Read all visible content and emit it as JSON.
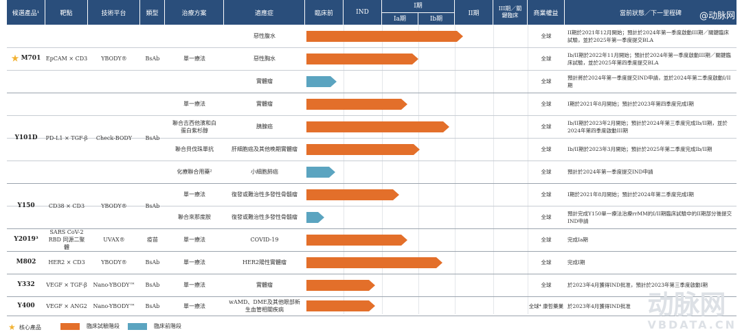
{
  "headers": {
    "candidate": "候選產品¹",
    "target": "靶點",
    "platform": "技術平台",
    "type": "類型",
    "regimen": "治療方案",
    "indication": "適應症",
    "preclinical": "臨床前",
    "ind": "IND",
    "phase1": "I期",
    "phase1a": "Ia期",
    "phase1b": "Ib期",
    "phase2": "II期",
    "phase3": "III期／關鍵臨床",
    "rights": "商業權益",
    "status": "當前狀態／下一里程碑"
  },
  "watermark_top": "@动脉网",
  "watermark_bottom": "动脉网",
  "watermark_url": "VBDATA.CN",
  "products": [
    {
      "name": "M701",
      "star": true,
      "target": "EpCAM × CD3",
      "platform": "YBODY®",
      "type": "BsAb"
    },
    {
      "name": "Y101D",
      "star": false,
      "target": "PD-L1 × TGF-β",
      "platform": "Check-BODY",
      "type": "BsAb"
    },
    {
      "name": "Y150",
      "star": false,
      "target": "CD38 × CD3",
      "platform": "YBODY®",
      "type": "BsAb"
    },
    {
      "name": "Y2019³",
      "star": false,
      "target": "SARS CoV-2 RBD 同源二聚體",
      "platform": "UVAX®",
      "type": "疫苗"
    },
    {
      "name": "M802",
      "star": false,
      "target": "HER2 × CD3",
      "platform": "YBODY®",
      "type": "BsAb"
    },
    {
      "name": "Y332",
      "star": false,
      "target": "VEGF × TGF-β",
      "platform": "Nano-YBODY™",
      "type": "BsAb"
    },
    {
      "name": "Y400",
      "star": false,
      "target": "VEGF × ANG2",
      "platform": "Nano-YBODY™",
      "type": "BsAb"
    }
  ],
  "regimens": [
    "單一療法",
    "單一療法",
    "聯合吉西他濱和白蛋白紫杉醇",
    "聯合貝伐珠單抗",
    "化療聯合用藥²",
    "單一療法",
    "聯合來那度胺",
    "單一療法",
    "單一療法",
    "單一療法",
    "單一療法"
  ],
  "rows": [
    {
      "indication": "惡性腹水",
      "stage": "clinical",
      "progress": 0.69,
      "rights": "全球",
      "status": "II期於2021年12月開始；預計於2024年第一季度啟動III期／關鍵臨床試驗，並於2025年第一季度提交BLA"
    },
    {
      "indication": "惡性胸水",
      "stage": "clinical",
      "progress": 0.485,
      "rights": "全球",
      "status": "Ib/II期於2022年11月開始；預計於2024年第一季度啟動III期／關鍵臨床試驗，並於2025年第四季度提交BLA"
    },
    {
      "indication": "實體瘤",
      "stage": "preclinical",
      "progress": 0.11,
      "rights": "全球",
      "status": "預計將於2024年第一季度提交IND申請，並於2024年第二季度啟動I/II期"
    },
    {
      "indication": "實體瘤",
      "stage": "clinical",
      "progress": 0.435,
      "rights": "全球",
      "status": "I期於2021年8月開始；預計於2023年第四季度完成I期"
    },
    {
      "indication": "胰腺癌",
      "stage": "clinical",
      "progress": 0.625,
      "rights": "全球",
      "status": "Ib/II期於2023年2月開始；預計於2024年第三季度完成Ib/II期，並於2024年第四季度啟動III期"
    },
    {
      "indication": "肝細胞癌及其他晚期實體瘤",
      "stage": "clinical",
      "progress": 0.49,
      "rights": "全球",
      "status": "Ib/II期於2023年3月開始；預計於2025年第二季度完成Ib/II期"
    },
    {
      "indication": "小細胞肺癌",
      "stage": "preclinical",
      "progress": 0.105,
      "rights": "全球",
      "status": "預計於2024年第一季度提交IND申請"
    },
    {
      "indication": "復發或難治性多發性骨髓瘤",
      "stage": "clinical",
      "progress": 0.395,
      "rights": "全球",
      "status": "I期於2021年8月開始；預計於2024年第二季度完成I期"
    },
    {
      "indication": "復發或難治性多發性骨髓瘤",
      "stage": "preclinical",
      "progress": 0.055,
      "rights": "全球",
      "status": "預計完成Y150單一療法治療rrMM的I/II期臨床試驗中的II期部分後提交IND申請"
    },
    {
      "indication": "COVID-19",
      "stage": "clinical",
      "progress": 0.435,
      "rights": "全球",
      "status": "完成Ia期"
    },
    {
      "indication": "HER2陽性實體瘤",
      "stage": "clinical",
      "progress": 0.595,
      "rights": "全球",
      "status": "完成I期"
    },
    {
      "indication": "實體瘤",
      "stage": "clinical",
      "progress": 0.285,
      "rights": "全球",
      "status": "於2023年4月獲得IND批准，預計於2023年第三季度啟動I期"
    },
    {
      "indication": "wAMD、DME及其他眼部新生血管相關疾病",
      "stage": "clinical",
      "progress": 0.285,
      "rights": "全球⁴ 康哲藥業",
      "status": "於2023年4月獲得IND批准"
    }
  ],
  "legend": {
    "core": "核心產品",
    "clinical": "臨床試驗階段",
    "preclinical": "臨床前階段"
  },
  "colors": {
    "header": "#2a4e7b",
    "clinical": "#e36f2a",
    "preclinical": "#5ba4c0",
    "star": "#f2b233"
  }
}
